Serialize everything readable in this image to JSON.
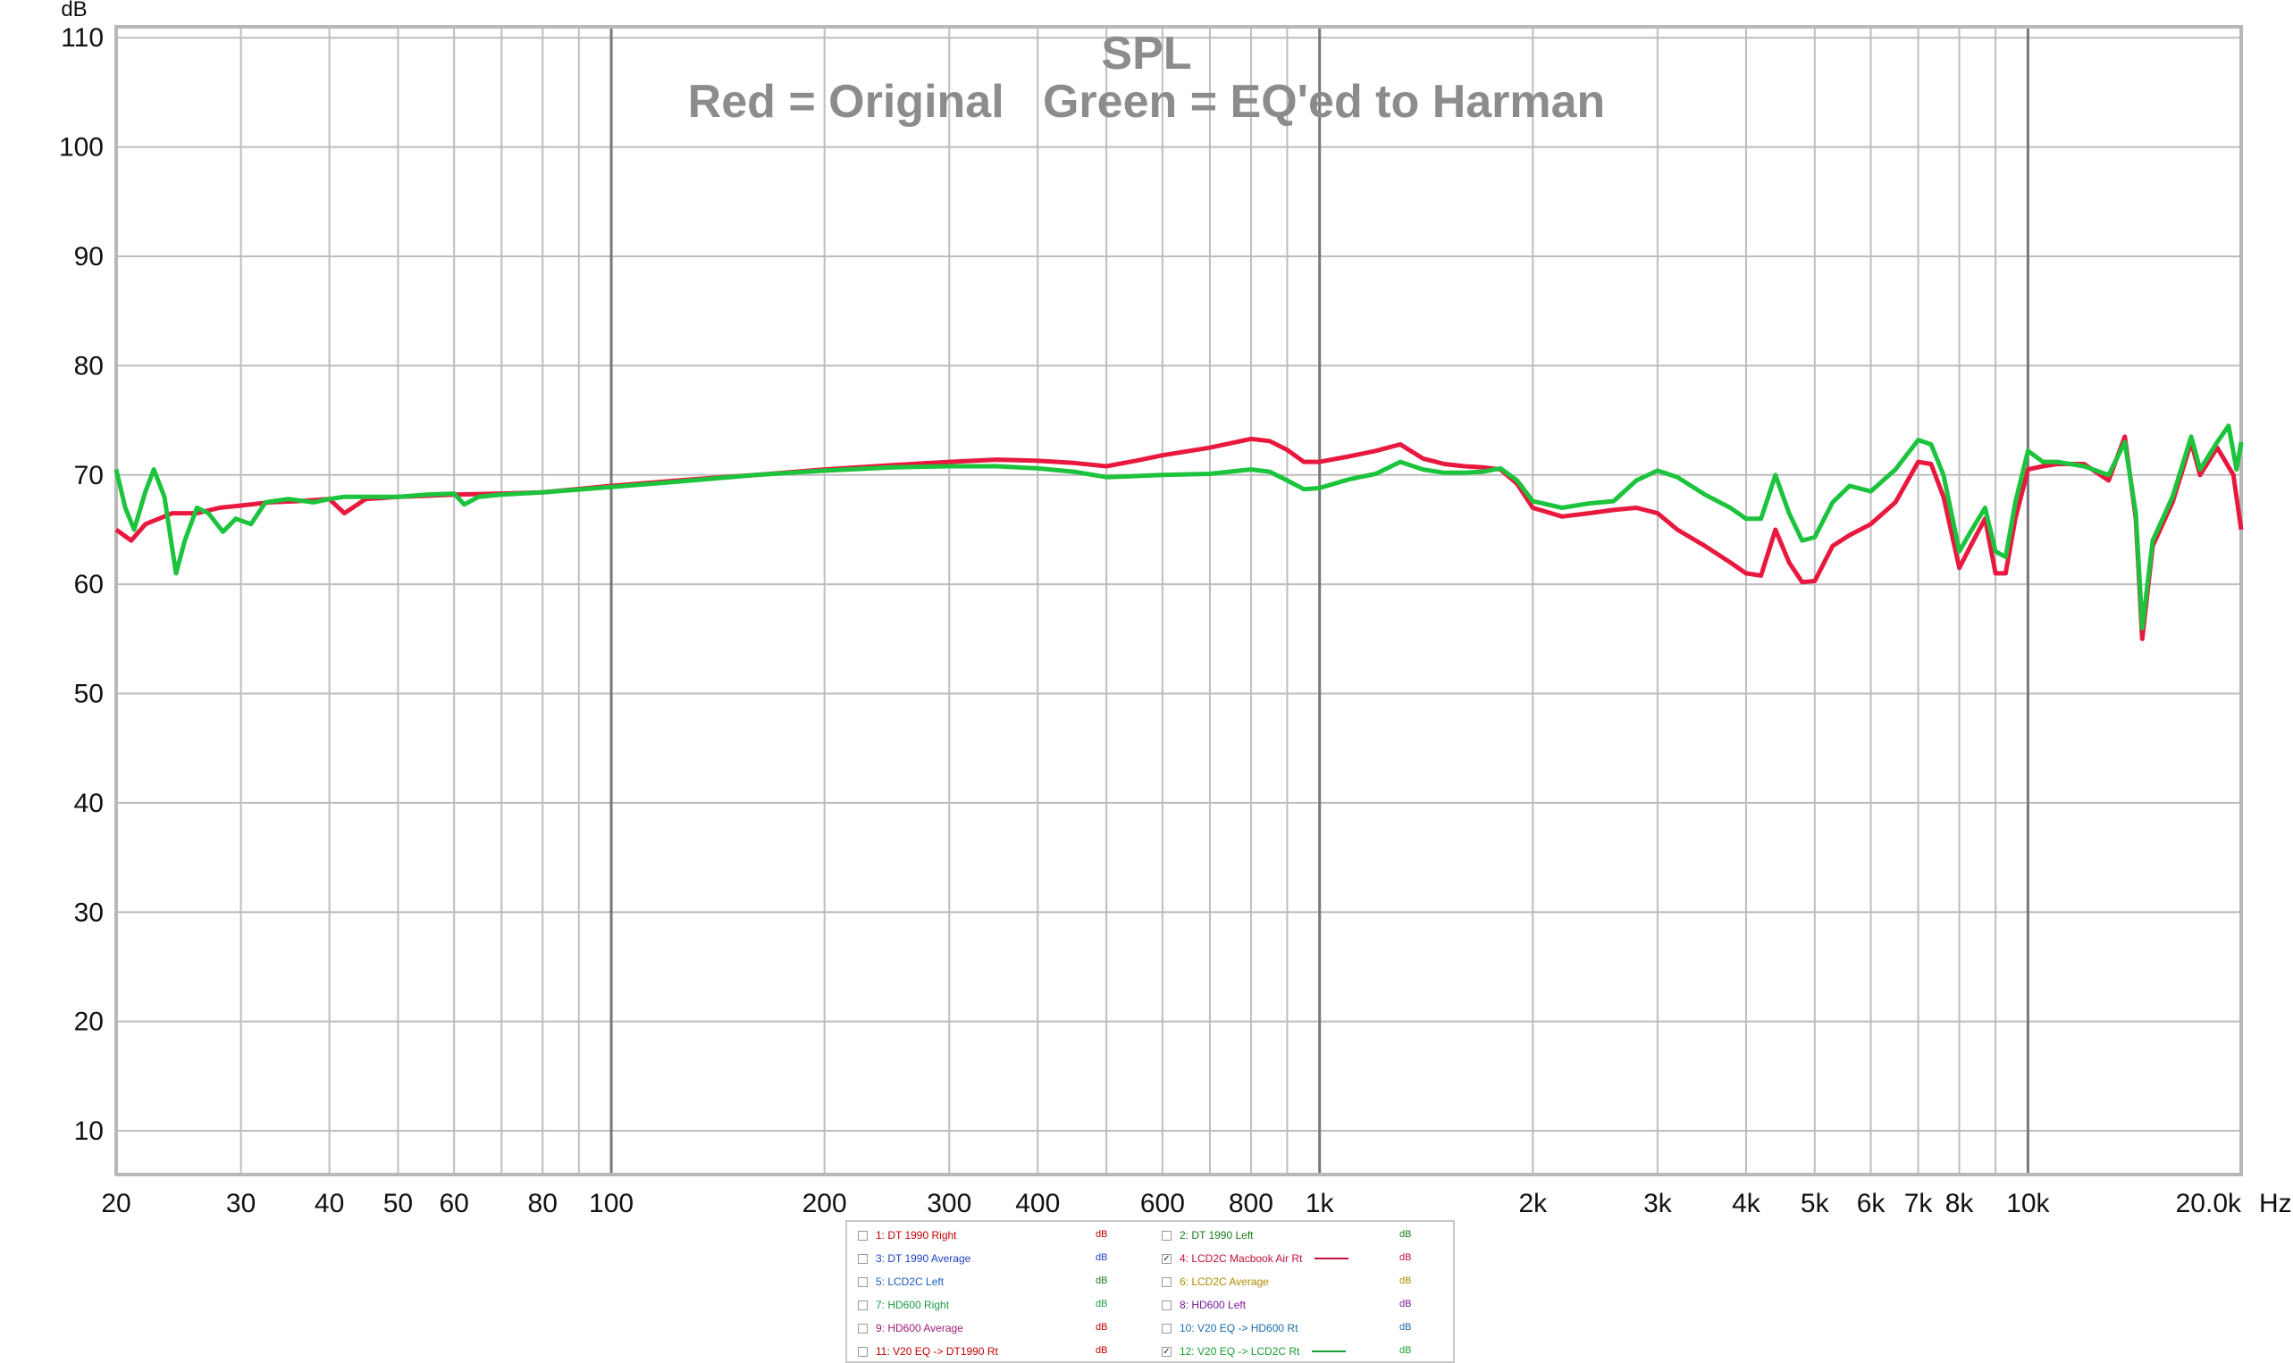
{
  "chart_data": {
    "type": "line",
    "title": "SPL",
    "subtitle": "Red = Original   Green = EQ'ed to Harman",
    "ylabel": "dB",
    "xlabel": "Hz",
    "x_scale": "log",
    "xlim": [
      20,
      20000
    ],
    "ylim": [
      6,
      111
    ],
    "grid": true,
    "y_ticks": [
      10,
      20,
      30,
      40,
      50,
      60,
      70,
      80,
      90,
      100,
      110
    ],
    "x_ticks": [
      {
        "value": 20,
        "label": "20"
      },
      {
        "value": 30,
        "label": "30"
      },
      {
        "value": 40,
        "label": "40"
      },
      {
        "value": 50,
        "label": "50"
      },
      {
        "value": 60,
        "label": "60"
      },
      {
        "value": 80,
        "label": "80"
      },
      {
        "value": 100,
        "label": "100"
      },
      {
        "value": 200,
        "label": "200"
      },
      {
        "value": 300,
        "label": "300"
      },
      {
        "value": 400,
        "label": "400"
      },
      {
        "value": 600,
        "label": "600"
      },
      {
        "value": 800,
        "label": "800"
      },
      {
        "value": 1000,
        "label": "1k"
      },
      {
        "value": 2000,
        "label": "2k"
      },
      {
        "value": 3000,
        "label": "3k"
      },
      {
        "value": 4000,
        "label": "4k"
      },
      {
        "value": 5000,
        "label": "5k"
      },
      {
        "value": 6000,
        "label": "6k"
      },
      {
        "value": 7000,
        "label": "7k"
      },
      {
        "value": 8000,
        "label": "8k"
      },
      {
        "value": 10000,
        "label": "10k"
      },
      {
        "value": 20000,
        "label": "20.0k"
      }
    ],
    "series": [
      {
        "name": "4: LCD2C Macbook Air Rt",
        "color": "#e8183f",
        "points": [
          [
            20,
            65
          ],
          [
            21,
            64
          ],
          [
            22,
            65.5
          ],
          [
            24,
            66.5
          ],
          [
            26,
            66.5
          ],
          [
            28,
            67
          ],
          [
            30,
            67.2
          ],
          [
            33,
            67.5
          ],
          [
            36,
            67.6
          ],
          [
            40,
            67.8
          ],
          [
            42,
            66.5
          ],
          [
            45,
            67.8
          ],
          [
            50,
            68
          ],
          [
            55,
            68.1
          ],
          [
            60,
            68.2
          ],
          [
            70,
            68.3
          ],
          [
            80,
            68.4
          ],
          [
            100,
            69
          ],
          [
            130,
            69.6
          ],
          [
            160,
            70
          ],
          [
            200,
            70.5
          ],
          [
            250,
            70.9
          ],
          [
            300,
            71.2
          ],
          [
            350,
            71.4
          ],
          [
            400,
            71.3
          ],
          [
            450,
            71.1
          ],
          [
            500,
            70.8
          ],
          [
            550,
            71.3
          ],
          [
            600,
            71.8
          ],
          [
            700,
            72.5
          ],
          [
            800,
            73.3
          ],
          [
            850,
            73.1
          ],
          [
            900,
            72.3
          ],
          [
            950,
            71.2
          ],
          [
            1000,
            71.2
          ],
          [
            1100,
            71.7
          ],
          [
            1200,
            72.2
          ],
          [
            1300,
            72.8
          ],
          [
            1400,
            71.5
          ],
          [
            1500,
            71
          ],
          [
            1600,
            70.8
          ],
          [
            1700,
            70.7
          ],
          [
            1800,
            70.5
          ],
          [
            1900,
            69.2
          ],
          [
            2000,
            67
          ],
          [
            2200,
            66.2
          ],
          [
            2400,
            66.5
          ],
          [
            2600,
            66.8
          ],
          [
            2800,
            67
          ],
          [
            3000,
            66.5
          ],
          [
            3200,
            65
          ],
          [
            3500,
            63.5
          ],
          [
            3800,
            62
          ],
          [
            4000,
            61
          ],
          [
            4200,
            60.8
          ],
          [
            4400,
            65
          ],
          [
            4600,
            62
          ],
          [
            4800,
            60.2
          ],
          [
            5000,
            60.3
          ],
          [
            5300,
            63.5
          ],
          [
            5600,
            64.5
          ],
          [
            6000,
            65.5
          ],
          [
            6500,
            67.5
          ],
          [
            7000,
            71.2
          ],
          [
            7300,
            71
          ],
          [
            7600,
            68
          ],
          [
            8000,
            61.5
          ],
          [
            8300,
            63.5
          ],
          [
            8700,
            66
          ],
          [
            9000,
            61
          ],
          [
            9300,
            61
          ],
          [
            9600,
            66
          ],
          [
            10000,
            70.5
          ],
          [
            10500,
            70.8
          ],
          [
            11000,
            71
          ],
          [
            12000,
            71
          ],
          [
            13000,
            69.5
          ],
          [
            13700,
            73.5
          ],
          [
            14200,
            66
          ],
          [
            14500,
            55
          ],
          [
            15000,
            63.5
          ],
          [
            16000,
            67.5
          ],
          [
            17000,
            73
          ],
          [
            17500,
            70
          ],
          [
            18500,
            72.5
          ],
          [
            19500,
            70
          ],
          [
            20000,
            65
          ]
        ]
      },
      {
        "name": "12: V20 EQ -> LCD2C Rt",
        "color": "#1cc33c",
        "points": [
          [
            20,
            70.5
          ],
          [
            20.6,
            67
          ],
          [
            21.2,
            65
          ],
          [
            22,
            68.5
          ],
          [
            22.6,
            70.5
          ],
          [
            23.4,
            68
          ],
          [
            24.3,
            61
          ],
          [
            25,
            64
          ],
          [
            26,
            67
          ],
          [
            27,
            66.5
          ],
          [
            28.3,
            64.8
          ],
          [
            29.5,
            66
          ],
          [
            31,
            65.5
          ],
          [
            32.5,
            67.5
          ],
          [
            35,
            67.8
          ],
          [
            38,
            67.5
          ],
          [
            40,
            67.8
          ],
          [
            42,
            68
          ],
          [
            45,
            68
          ],
          [
            50,
            68
          ],
          [
            55,
            68.2
          ],
          [
            60,
            68.3
          ],
          [
            62,
            67.3
          ],
          [
            65,
            68
          ],
          [
            70,
            68.2
          ],
          [
            80,
            68.4
          ],
          [
            100,
            68.9
          ],
          [
            130,
            69.5
          ],
          [
            160,
            70
          ],
          [
            200,
            70.4
          ],
          [
            250,
            70.7
          ],
          [
            300,
            70.8
          ],
          [
            350,
            70.8
          ],
          [
            400,
            70.6
          ],
          [
            450,
            70.3
          ],
          [
            500,
            69.8
          ],
          [
            600,
            70
          ],
          [
            700,
            70.1
          ],
          [
            800,
            70.5
          ],
          [
            850,
            70.3
          ],
          [
            900,
            69.5
          ],
          [
            950,
            68.7
          ],
          [
            1000,
            68.8
          ],
          [
            1100,
            69.6
          ],
          [
            1200,
            70.1
          ],
          [
            1300,
            71.2
          ],
          [
            1400,
            70.5
          ],
          [
            1500,
            70.2
          ],
          [
            1600,
            70.2
          ],
          [
            1700,
            70.3
          ],
          [
            1800,
            70.6
          ],
          [
            1900,
            69.5
          ],
          [
            2000,
            67.6
          ],
          [
            2200,
            67
          ],
          [
            2400,
            67.4
          ],
          [
            2600,
            67.6
          ],
          [
            2800,
            69.5
          ],
          [
            3000,
            70.4
          ],
          [
            3200,
            69.8
          ],
          [
            3500,
            68.2
          ],
          [
            3800,
            67
          ],
          [
            4000,
            66
          ],
          [
            4200,
            66
          ],
          [
            4400,
            70
          ],
          [
            4600,
            66.5
          ],
          [
            4800,
            64
          ],
          [
            5000,
            64.3
          ],
          [
            5300,
            67.5
          ],
          [
            5600,
            69
          ],
          [
            6000,
            68.5
          ],
          [
            6500,
            70.5
          ],
          [
            7000,
            73.2
          ],
          [
            7300,
            72.8
          ],
          [
            7600,
            70
          ],
          [
            8000,
            63
          ],
          [
            8300,
            64.8
          ],
          [
            8700,
            67
          ],
          [
            9000,
            63
          ],
          [
            9300,
            62.5
          ],
          [
            9600,
            67.5
          ],
          [
            10000,
            72.2
          ],
          [
            10500,
            71.2
          ],
          [
            11000,
            71.2
          ],
          [
            12000,
            70.8
          ],
          [
            13000,
            70
          ],
          [
            13700,
            73
          ],
          [
            14200,
            66.5
          ],
          [
            14500,
            56
          ],
          [
            15000,
            64
          ],
          [
            16000,
            68
          ],
          [
            17000,
            73.5
          ],
          [
            17500,
            70.5
          ],
          [
            18500,
            73
          ],
          [
            19200,
            74.5
          ],
          [
            19700,
            70.5
          ],
          [
            20000,
            73
          ]
        ]
      }
    ]
  },
  "legend": {
    "unit_label": "dB",
    "entries": [
      {
        "id": "1",
        "label": "1: DT 1990 Right",
        "color": "#c00000",
        "unit_color": "#c00000",
        "checked": false,
        "swatch": false
      },
      {
        "id": "2",
        "label": "2: DT 1990 Left",
        "color": "#1a7a1a",
        "unit_color": "#1a7a1a",
        "checked": false,
        "swatch": false
      },
      {
        "id": "3",
        "label": "3: DT 1990 Average",
        "color": "#2040c0",
        "unit_color": "#2040c0",
        "checked": false,
        "swatch": false
      },
      {
        "id": "4",
        "label": "4: LCD2C Macbook Air Rt",
        "color": "#c0103a",
        "unit_color": "#c0103a",
        "checked": true,
        "swatch": true
      },
      {
        "id": "5",
        "label": "5: LCD2C Left",
        "color": "#1a5ac0",
        "unit_color": "#1a7a1a",
        "checked": false,
        "swatch": false
      },
      {
        "id": "6",
        "label": "6: LCD2C Average",
        "color": "#b08a00",
        "unit_color": "#b08a00",
        "checked": false,
        "swatch": false
      },
      {
        "id": "7",
        "label": "7: HD600 Right",
        "color": "#1a9a4a",
        "unit_color": "#1a9a4a",
        "checked": false,
        "swatch": false
      },
      {
        "id": "8",
        "label": "8: HD600 Left",
        "color": "#7a1a9a",
        "unit_color": "#7a1a9a",
        "checked": false,
        "swatch": false
      },
      {
        "id": "9",
        "label": "9: HD600 Average",
        "color": "#a01a7a",
        "unit_color": "#c00000",
        "checked": false,
        "swatch": false
      },
      {
        "id": "10",
        "label": "10: V20 EQ -> HD600 Rt",
        "color": "#1a6ab0",
        "unit_color": "#1a6ab0",
        "checked": false,
        "swatch": false
      },
      {
        "id": "11",
        "label": "11: V20 EQ -> DT1990 Rt",
        "color": "#c00000",
        "unit_color": "#c00000",
        "checked": false,
        "swatch": false
      },
      {
        "id": "12",
        "label": "12: V20 EQ -> LCD2C Rt",
        "color": "#1aa030",
        "unit_color": "#1aa030",
        "checked": true,
        "swatch": true
      }
    ]
  }
}
